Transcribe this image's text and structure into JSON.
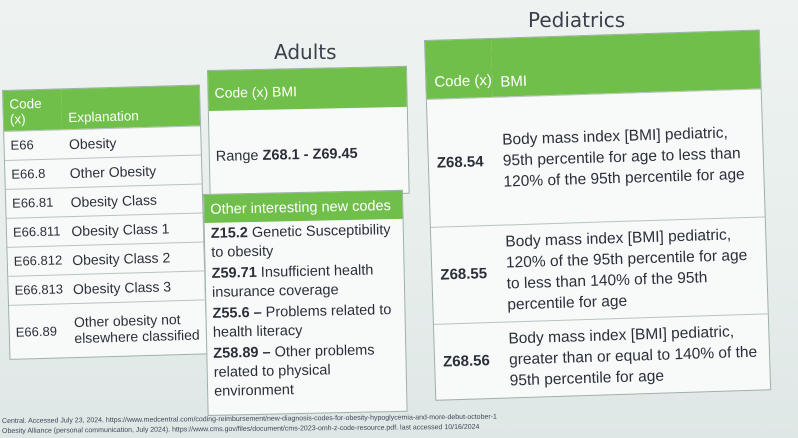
{
  "headings": {
    "adults": "Adults",
    "pediatrics": "Pediatrics"
  },
  "codes_table": {
    "header_code": "Code (x)",
    "header_explanation": "Explanation",
    "rows": [
      {
        "code": "E66",
        "explanation": "Obesity"
      },
      {
        "code": "E66.8",
        "explanation": "Other Obesity"
      },
      {
        "code": "E66.81",
        "explanation": "Obesity Class"
      },
      {
        "code": "E66.811",
        "explanation": "Obesity Class 1"
      },
      {
        "code": "E66.812",
        "explanation": "Obesity Class 2"
      },
      {
        "code": "E66.813",
        "explanation": "Obesity Class 3"
      },
      {
        "code": "E66.89",
        "explanation": "Other obesity not elsewhere classified"
      }
    ]
  },
  "bmi_box": {
    "header": "Code (x) BMI",
    "range_label": "Range",
    "range_value": "Z68.1 -  Z69.45"
  },
  "other_codes": {
    "header": "Other interesting new codes",
    "items": [
      {
        "code": "Z15.2",
        "text": " Genetic Susceptibility to obesity"
      },
      {
        "code": "Z59.71",
        "text": " Insufficient health insurance coverage"
      },
      {
        "code": "Z55.6 –",
        "text": " Problems related to health literacy"
      },
      {
        "code": "Z58.89 –",
        "text": " Other problems related to physical environment"
      }
    ]
  },
  "pediatrics_table": {
    "header_code": "Code (x)",
    "header_bmi": "BMI",
    "rows": [
      {
        "code": "Z68.54",
        "description": "Body mass index [BMI] pediatric, 95th percentile for age to less than 120% of the 95th percentile for age"
      },
      {
        "code": "Z68.55",
        "description": "Body mass index [BMI] pediatric, 120% of the 95th percentile for age to less than 140% of the 95th percentile for age"
      },
      {
        "code": "Z68.56",
        "description": "Body mass index [BMI] pediatric, greater than or equal to 140% of the 95th percentile for age"
      }
    ]
  },
  "footnotes": [
    "Central. Accessed July 23, 2024. https://www.medcentral.com/coding-reimbursement/new-diagnosis-codes-for-obesity-hypoglycemia-and-more-debut-october-1",
    "Obesity Alliance (personal communication, July 2024).  https://www.cms.gov/files/document/cms-2023-omh-z-code-resource.pdf. last accessed 10/16/2024"
  ],
  "colors": {
    "header_green": "#6fbf4a",
    "background": "#e9efed"
  }
}
